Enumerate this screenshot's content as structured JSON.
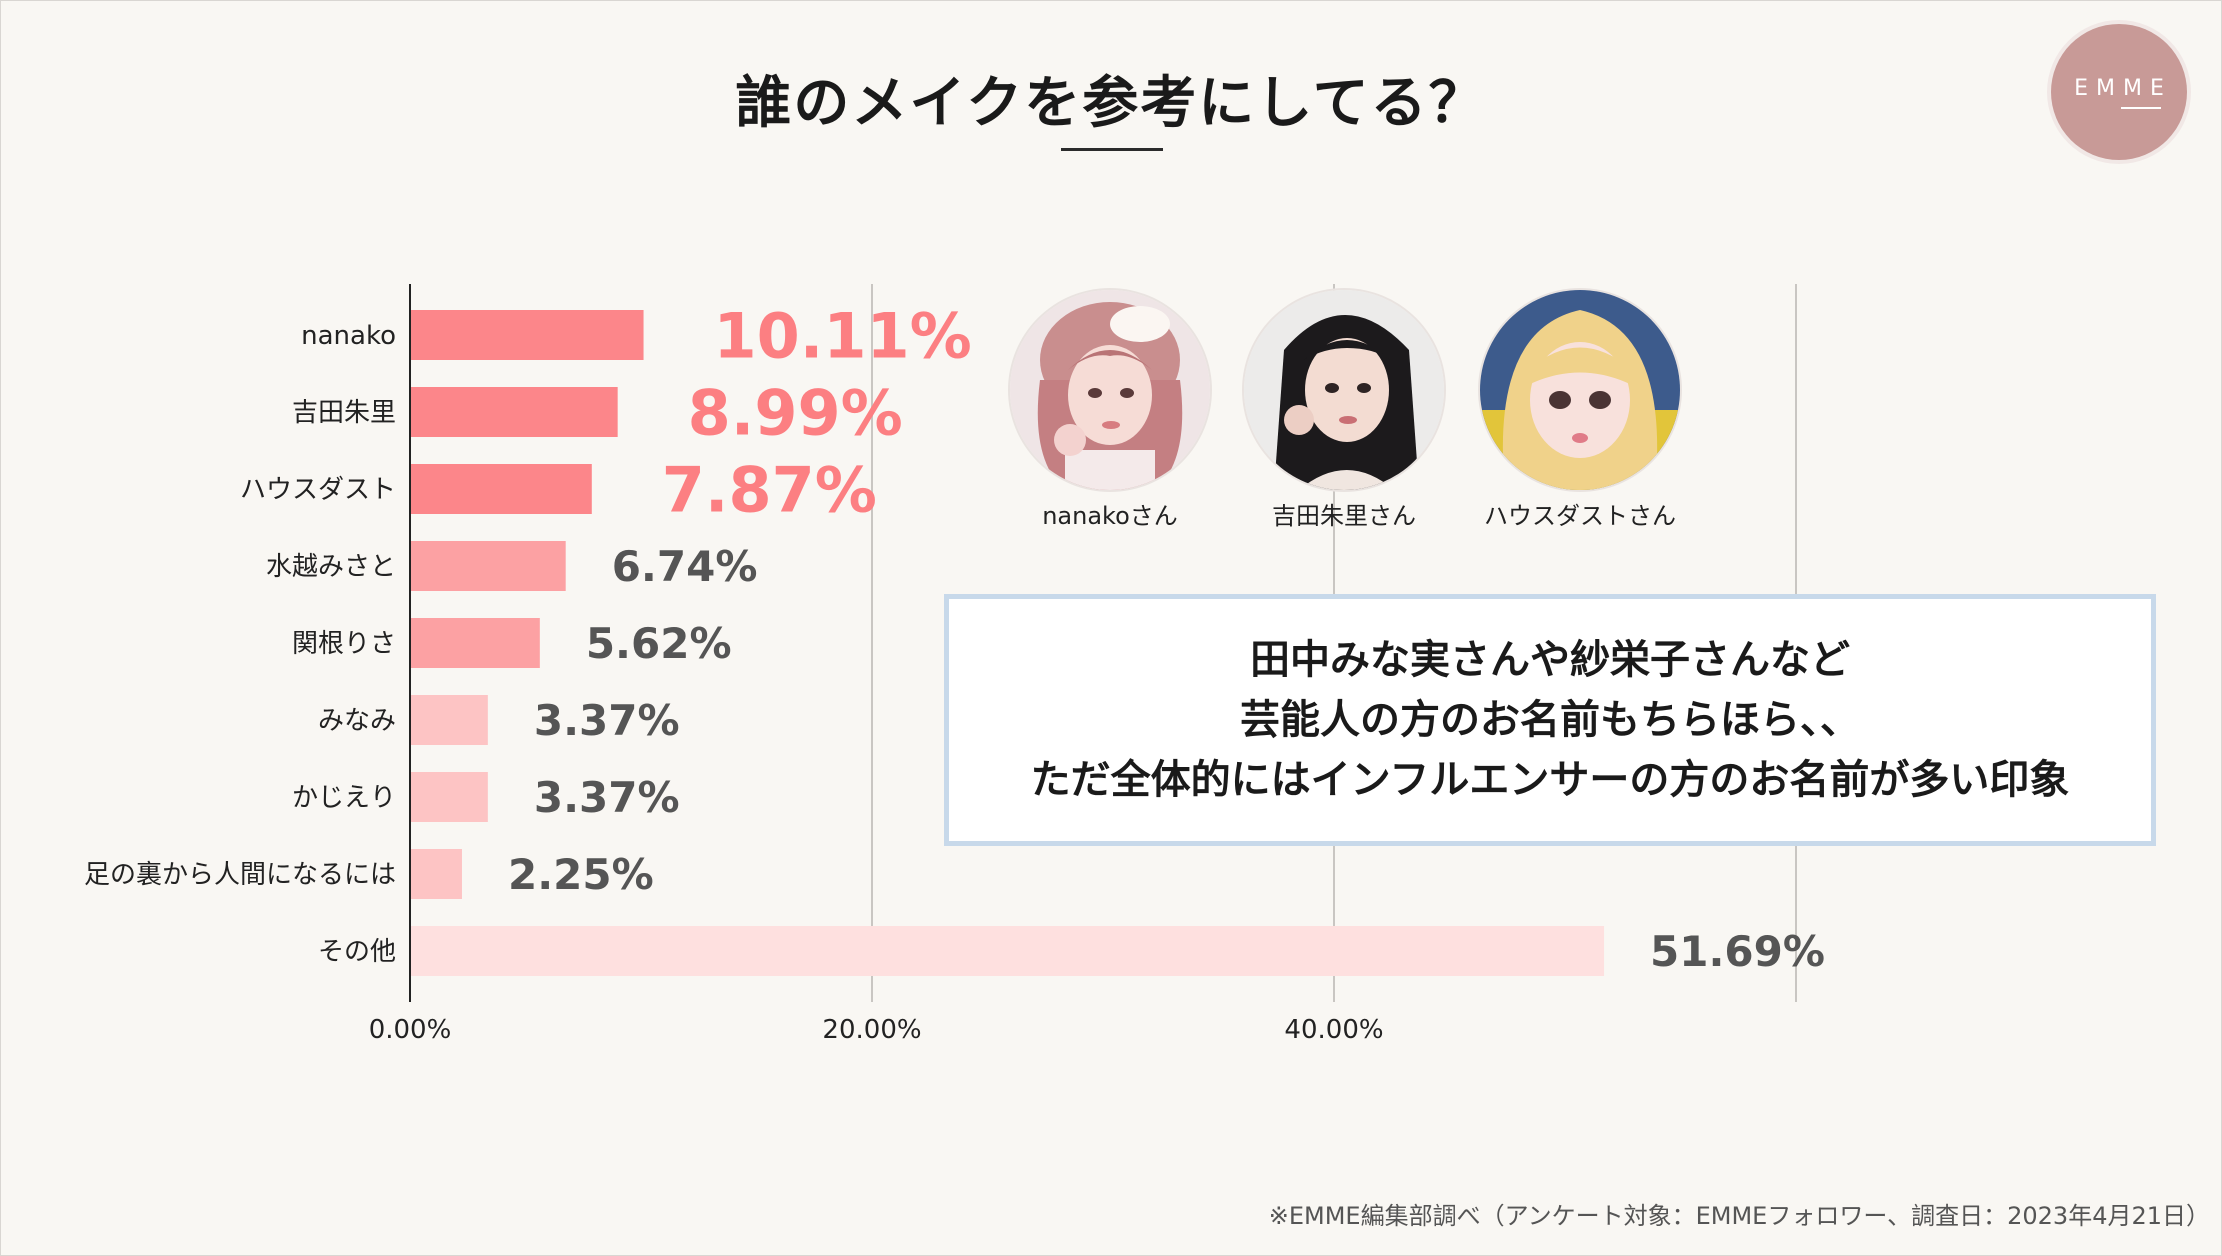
{
  "title": "誰のメイクを参考にしてる？",
  "logo": {
    "text": "EMME",
    "color": "#c89a97"
  },
  "chart_data": {
    "type": "bar",
    "orientation": "horizontal",
    "categories": [
      "nanako",
      "吉田朱里",
      "ハウスダスト",
      "水越みさと",
      "関根りさ",
      "みなみ",
      "かじえり",
      "足の裏から人間になるには",
      "その他"
    ],
    "values": [
      10.11,
      8.99,
      7.87,
      6.74,
      5.62,
      3.37,
      3.37,
      2.25,
      51.69
    ],
    "value_labels": [
      "10.11%",
      "8.99%",
      "7.87%",
      "6.74%",
      "5.62%",
      "3.37%",
      "3.37%",
      "2.25%",
      "51.69%"
    ],
    "x_ticks": [
      "0.00%",
      "20.00%",
      "40.00%"
    ],
    "xlim": [
      0,
      60
    ],
    "grid": true,
    "bar_colors": [
      "#fc868a",
      "#fc868a",
      "#fc868a",
      "#fca1a3",
      "#fca1a3",
      "#fdc4c4",
      "#fdc4c4",
      "#fdc4c4",
      "#fee0df"
    ],
    "label_colors": [
      "#fc7f82",
      "#fc7f82",
      "#fc7f82",
      "#555555",
      "#555555",
      "#555555",
      "#555555",
      "#555555",
      "#555555"
    ]
  },
  "avatars": [
    {
      "caption": "nanakoさん"
    },
    {
      "caption": "吉田朱里さん"
    },
    {
      "caption": "ハウスダストさん"
    }
  ],
  "note": {
    "lines": [
      "田中みな実さんや紗栄子さんなど",
      "芸能人の方のお名前もちらほら、、",
      "ただ全体的にはインフルエンサーの方のお名前が多い印象"
    ],
    "border_color": "#c8d9ea"
  },
  "footnote": "※EMME編集部調べ（アンケート対象：EMMEフォロワー、調査日：2023年4月21日）"
}
